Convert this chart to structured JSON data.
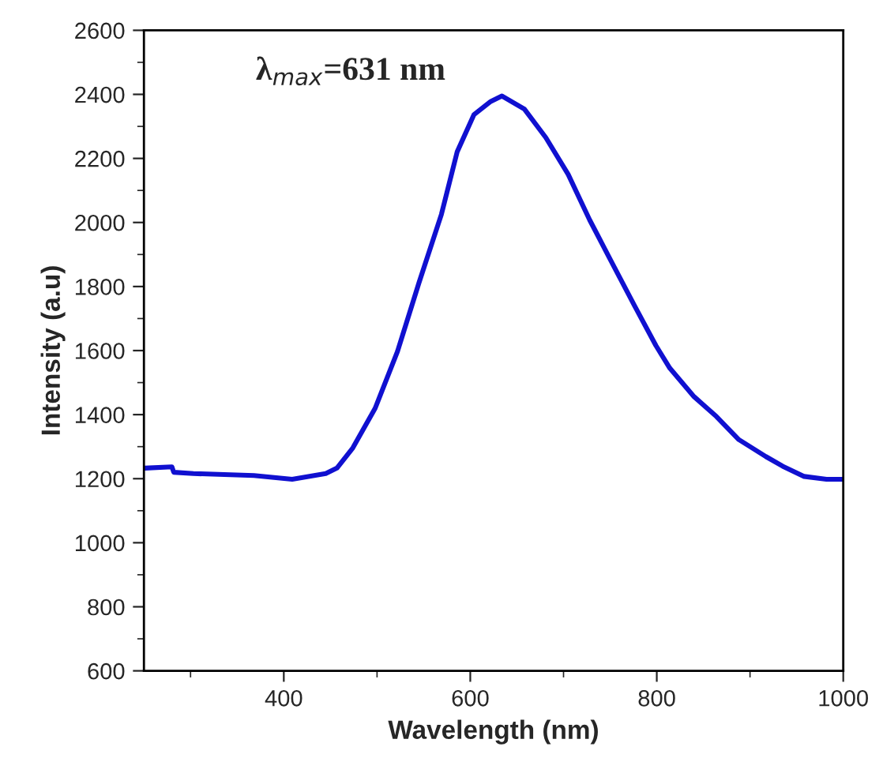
{
  "chart_data": {
    "type": "line",
    "xlabel": "Wavelength (nm)",
    "ylabel": "Intensity (a.u)",
    "annotations": [
      "λ$_{max}$=631 nm"
    ],
    "x": [
      251,
      280,
      282,
      303,
      368,
      409,
      445,
      457,
      474,
      498,
      522,
      545,
      569,
      586,
      604,
      622,
      634,
      658,
      681,
      705,
      728,
      752,
      776,
      799,
      814,
      840,
      864,
      888,
      917,
      935,
      958,
      982,
      1000
    ],
    "series": [
      {
        "color": "#1010d0",
        "values": [
          1233,
          1237,
          1220,
          1216,
          1210,
          1198,
          1216,
          1233,
          1296,
          1420,
          1598,
          1812,
          2025,
          2221,
          2337,
          2378,
          2395,
          2354,
          2265,
          2150,
          2008,
          1874,
          1741,
          1616,
          1545,
          1456,
          1394,
          1322,
          1269,
          1239,
          1207,
          1198,
          1198
        ]
      }
    ],
    "xlim": [
      250,
      1000
    ],
    "xticks": [
      400,
      600,
      800,
      1000
    ],
    "ylim": [
      600,
      2600
    ],
    "yticks": [
      600,
      800,
      1000,
      1200,
      1400,
      1600,
      1800,
      2000,
      2200,
      2400,
      2600
    ],
    "grid": false,
    "legend": false,
    "marker": "none",
    "line_style": "solid"
  }
}
